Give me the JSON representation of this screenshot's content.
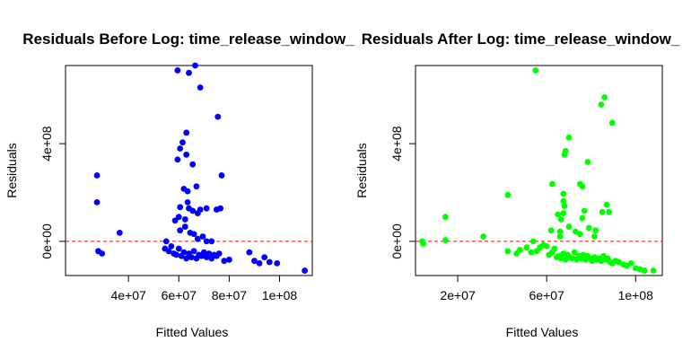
{
  "colors": {
    "left_points": "#0000ff",
    "right_points": "#00ff00",
    "zero_line": "#ff0000",
    "axes": "#000000",
    "background": "#ffffff"
  },
  "chart_data": [
    {
      "type": "scatter",
      "title": "Residuals Before Log: time_release_window_",
      "xlabel": "Fitted Values",
      "ylabel": "Residuals",
      "xlim": [
        15000000,
        113000000
      ],
      "ylim": [
        -140000000,
        720000000
      ],
      "xticks": [
        40000000,
        60000000,
        80000000,
        100000000
      ],
      "xtick_labels": [
        "4e+07",
        "6e+07",
        "8e+07",
        "1e+08"
      ],
      "yticks": [
        0,
        400000000
      ],
      "ytick_labels": [
        "0e+00",
        "4e+08"
      ],
      "grid": false,
      "reference_line": {
        "y": 0,
        "style": "dashed",
        "color": "#ff0000"
      },
      "points": [
        [
          27500000,
          270000000
        ],
        [
          27500000,
          160000000
        ],
        [
          28000000,
          -40000000
        ],
        [
          29500000,
          -50000000
        ],
        [
          36500000,
          35000000
        ],
        [
          59500000,
          700000000
        ],
        [
          64000000,
          690000000
        ],
        [
          66500000,
          720000000
        ],
        [
          68500000,
          630000000
        ],
        [
          75500000,
          510000000
        ],
        [
          77000000,
          270000000
        ],
        [
          63000000,
          445000000
        ],
        [
          61500000,
          405000000
        ],
        [
          60500000,
          380000000
        ],
        [
          63000000,
          355000000
        ],
        [
          59500000,
          335000000
        ],
        [
          65500000,
          315000000
        ],
        [
          67000000,
          225000000
        ],
        [
          62000000,
          215000000
        ],
        [
          63500000,
          205000000
        ],
        [
          63500000,
          160000000
        ],
        [
          60500000,
          140000000
        ],
        [
          64000000,
          135000000
        ],
        [
          65500000,
          125000000
        ],
        [
          67500000,
          115000000
        ],
        [
          68500000,
          130000000
        ],
        [
          71000000,
          135000000
        ],
        [
          75000000,
          130000000
        ],
        [
          76500000,
          135000000
        ],
        [
          60000000,
          100000000
        ],
        [
          62500000,
          90000000
        ],
        [
          58500000,
          85000000
        ],
        [
          60500000,
          45000000
        ],
        [
          62500000,
          60000000
        ],
        [
          64500000,
          35000000
        ],
        [
          66000000,
          30000000
        ],
        [
          67500000,
          10000000
        ],
        [
          69500000,
          20000000
        ],
        [
          71000000,
          0
        ],
        [
          73000000,
          0
        ],
        [
          54500000,
          -30000000
        ],
        [
          55000000,
          0
        ],
        [
          56000000,
          -40000000
        ],
        [
          57000000,
          -20000000
        ],
        [
          58000000,
          -50000000
        ],
        [
          59000000,
          -55000000
        ],
        [
          60000000,
          -30000000
        ],
        [
          61000000,
          -60000000
        ],
        [
          62000000,
          -45000000
        ],
        [
          63000000,
          -70000000
        ],
        [
          64000000,
          -50000000
        ],
        [
          65000000,
          -65000000
        ],
        [
          66000000,
          -40000000
        ],
        [
          67000000,
          -70000000
        ],
        [
          68000000,
          -55000000
        ],
        [
          69000000,
          -60000000
        ],
        [
          70000000,
          -45000000
        ],
        [
          71000000,
          -65000000
        ],
        [
          72000000,
          -50000000
        ],
        [
          73000000,
          -70000000
        ],
        [
          74000000,
          -55000000
        ],
        [
          75000000,
          -60000000
        ],
        [
          76000000,
          -50000000
        ],
        [
          78000000,
          -80000000
        ],
        [
          80000000,
          -75000000
        ],
        [
          88000000,
          -45000000
        ],
        [
          90000000,
          -80000000
        ],
        [
          92000000,
          -90000000
        ],
        [
          94000000,
          -65000000
        ],
        [
          96000000,
          -85000000
        ],
        [
          99000000,
          -90000000
        ],
        [
          110000000,
          -120000000
        ]
      ]
    },
    {
      "type": "scatter",
      "title": "Residuals After Log: time_release_window_",
      "xlabel": "Fitted Values",
      "ylabel": "Residuals",
      "xlim": [
        1000000,
        112000000
      ],
      "ylim": [
        -140000000,
        720000000
      ],
      "xticks": [
        20000000,
        60000000,
        100000000
      ],
      "xtick_labels": [
        "2e+07",
        "6e+07",
        "1e+08"
      ],
      "yticks": [
        0,
        400000000
      ],
      "ytick_labels": [
        "0e+00",
        "4e+08"
      ],
      "grid": false,
      "reference_line": {
        "y": 0,
        "style": "dashed",
        "color": "#ff0000"
      },
      "points": [
        [
          4000000,
          0
        ],
        [
          4500000,
          -10000000
        ],
        [
          14500000,
          100000000
        ],
        [
          14500000,
          5000000
        ],
        [
          31500000,
          20000000
        ],
        [
          42500000,
          190000000
        ],
        [
          42500000,
          -40000000
        ],
        [
          46500000,
          -50000000
        ],
        [
          48000000,
          -35000000
        ],
        [
          51000000,
          -25000000
        ],
        [
          53000000,
          -45000000
        ],
        [
          54000000,
          0
        ],
        [
          55500000,
          -40000000
        ],
        [
          57000000,
          -25000000
        ],
        [
          58500000,
          -15000000
        ],
        [
          55000000,
          700000000
        ],
        [
          86000000,
          590000000
        ],
        [
          84500000,
          560000000
        ],
        [
          89500000,
          485000000
        ],
        [
          78500000,
          325000000
        ],
        [
          76000000,
          225000000
        ],
        [
          75000000,
          235000000
        ],
        [
          68000000,
          355000000
        ],
        [
          70000000,
          425000000
        ],
        [
          68500000,
          370000000
        ],
        [
          88000000,
          120000000
        ],
        [
          87000000,
          150000000
        ],
        [
          85000000,
          120000000
        ],
        [
          77000000,
          125000000
        ],
        [
          76000000,
          95000000
        ],
        [
          67500000,
          195000000
        ],
        [
          67500000,
          165000000
        ],
        [
          68000000,
          145000000
        ],
        [
          67500000,
          115000000
        ],
        [
          65000000,
          110000000
        ],
        [
          66500000,
          90000000
        ],
        [
          66000000,
          40000000
        ],
        [
          66000000,
          20000000
        ],
        [
          62000000,
          45000000
        ],
        [
          62500000,
          235000000
        ],
        [
          70000000,
          60000000
        ],
        [
          73000000,
          40000000
        ],
        [
          75000000,
          30000000
        ],
        [
          79000000,
          55000000
        ],
        [
          82000000,
          45000000
        ],
        [
          81500000,
          20000000
        ],
        [
          60000000,
          -20000000
        ],
        [
          61000000,
          -55000000
        ],
        [
          62500000,
          -45000000
        ],
        [
          63500000,
          -30000000
        ],
        [
          64500000,
          -65000000
        ],
        [
          65500000,
          -60000000
        ],
        [
          66500000,
          -70000000
        ],
        [
          67500000,
          -50000000
        ],
        [
          68500000,
          -75000000
        ],
        [
          69500000,
          -55000000
        ],
        [
          70500000,
          -65000000
        ],
        [
          71500000,
          -70000000
        ],
        [
          72500000,
          -45000000
        ],
        [
          73500000,
          -75000000
        ],
        [
          74500000,
          -60000000
        ],
        [
          75500000,
          -70000000
        ],
        [
          76500000,
          -55000000
        ],
        [
          77500000,
          -75000000
        ],
        [
          78500000,
          -60000000
        ],
        [
          79500000,
          -70000000
        ],
        [
          80500000,
          -80000000
        ],
        [
          81500000,
          -65000000
        ],
        [
          82500000,
          -75000000
        ],
        [
          83500000,
          -70000000
        ],
        [
          84500000,
          -80000000
        ],
        [
          85500000,
          -60000000
        ],
        [
          86500000,
          -75000000
        ],
        [
          87500000,
          -70000000
        ],
        [
          88500000,
          -85000000
        ],
        [
          89500000,
          -90000000
        ],
        [
          91000000,
          -80000000
        ],
        [
          92500000,
          -85000000
        ],
        [
          94500000,
          -95000000
        ],
        [
          96000000,
          -100000000
        ],
        [
          98000000,
          -90000000
        ],
        [
          100000000,
          -110000000
        ],
        [
          102000000,
          -115000000
        ],
        [
          104000000,
          -120000000
        ],
        [
          108000000,
          -120000000
        ]
      ]
    }
  ]
}
